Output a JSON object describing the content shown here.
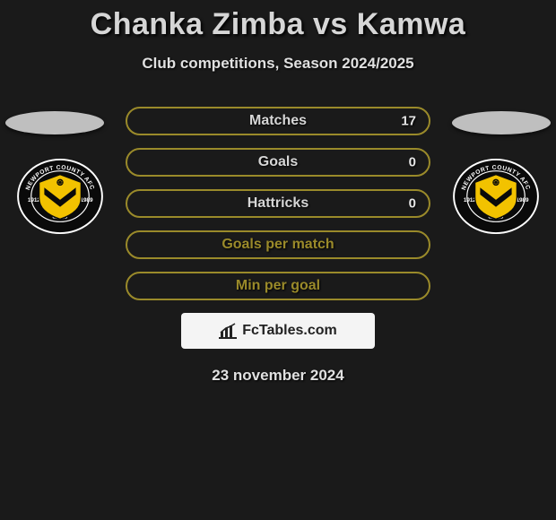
{
  "title": "Chanka Zimba vs Kamwa",
  "subtitle": "Club competitions, Season 2024/2025",
  "date": "23 november 2024",
  "stats": [
    {
      "label": "Matches",
      "value_right": "17",
      "border_color": "#9a8a2a",
      "label_color": "#d6d6d6"
    },
    {
      "label": "Goals",
      "value_right": "0",
      "border_color": "#9a8a2a",
      "label_color": "#d6d6d6"
    },
    {
      "label": "Hattricks",
      "value_right": "0",
      "border_color": "#9a8a2a",
      "label_color": "#d6d6d6"
    },
    {
      "label": "Goals per match",
      "value_right": "",
      "border_color": "#9a8a2a",
      "label_color": "#9a8a2a"
    },
    {
      "label": "Min per goal",
      "value_right": "",
      "border_color": "#9a8a2a",
      "label_color": "#9a8a2a"
    }
  ],
  "watermark_text": "FcTables.com",
  "crest": {
    "outer_ring_stroke": "#ffffff",
    "outer_ring_fill": "#0a0a0a",
    "inner_shield_fill": "#f2c200",
    "inner_shield_stroke": "#0a0a0a",
    "chevron_fill": "#0a0a0a",
    "ring_text_color": "#ffffff",
    "top_text": "NEWPORT COUNTY AFC",
    "left_year": "1912",
    "right_year": "1989",
    "bottom_text": "exiles"
  }
}
